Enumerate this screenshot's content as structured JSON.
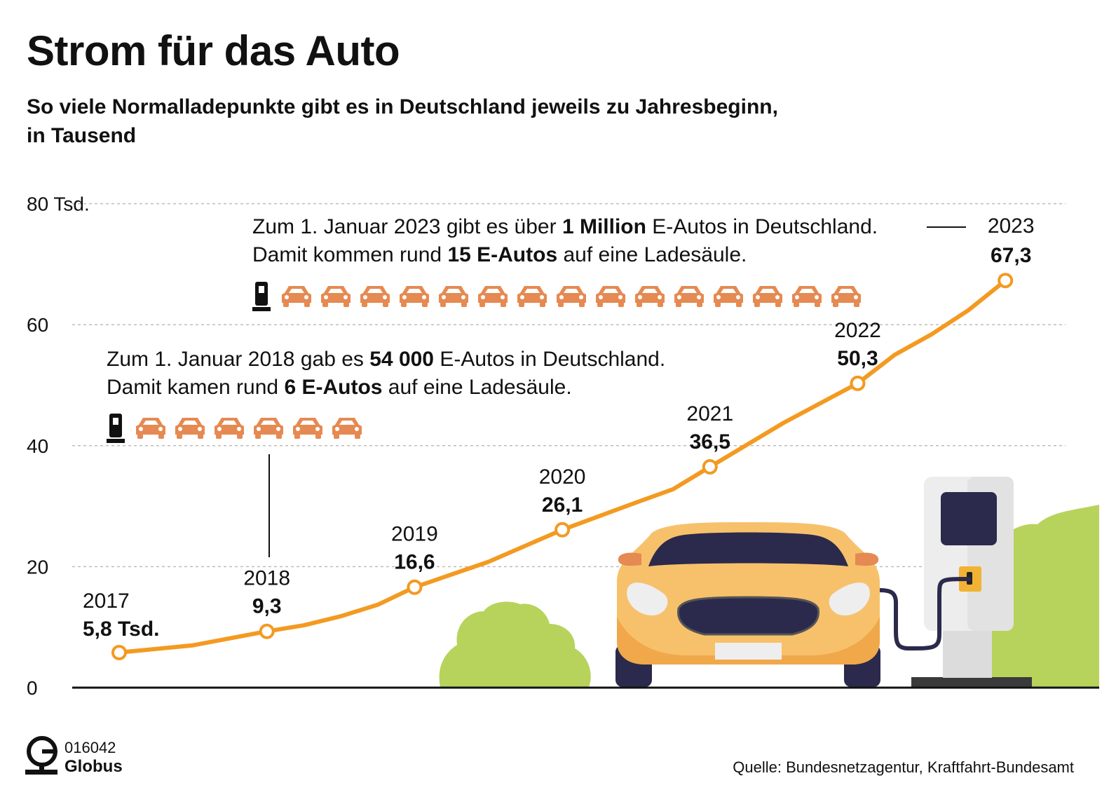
{
  "header": {
    "title": "Strom für das Auto",
    "subtitle_line1": "So viele Normalladepunkte gibt es in Deutschland jeweils zu Jahresbeginn,",
    "subtitle_line2": "in Tausend"
  },
  "colors": {
    "line": "#f39a21",
    "car_icon": "#e58a52",
    "charger_icon": "#111111",
    "grid": "#bdbdbd",
    "bush": "#b7d35c",
    "car_body": "#f7c16b",
    "car_dark": "#2b2a4c"
  },
  "chart_data": {
    "type": "line",
    "title": "Strom für das Auto",
    "subtitle": "So viele Normalladepunkte gibt es in Deutschland jeweils zu Jahresbeginn, in Tausend",
    "ylim": [
      0,
      80
    ],
    "y_ticks": [
      0,
      20,
      40,
      60,
      80
    ],
    "y_tick_labels": [
      "0",
      "20",
      "40",
      "60",
      "80 Tsd."
    ],
    "grid": true,
    "labeled_points": [
      {
        "year": "2017",
        "value": 5.8,
        "label": "5,8 Tsd."
      },
      {
        "year": "2018",
        "value": 9.3,
        "label": "9,3"
      },
      {
        "year": "2019",
        "value": 16.6,
        "label": "16,6"
      },
      {
        "year": "2020",
        "value": 26.1,
        "label": "26,1"
      },
      {
        "year": "2021",
        "value": 36.5,
        "label": "36,5"
      },
      {
        "year": "2022",
        "value": 50.3,
        "label": "50,3"
      },
      {
        "year": "2023",
        "value": 67.3,
        "label": "67,3"
      }
    ],
    "series_path": [
      {
        "x": 2017,
        "y": 5.8
      },
      {
        "x": 2017.5,
        "y": 7.0
      },
      {
        "x": 2018,
        "y": 9.3
      },
      {
        "x": 2018.25,
        "y": 10.3
      },
      {
        "x": 2018.5,
        "y": 11.8
      },
      {
        "x": 2018.75,
        "y": 13.7
      },
      {
        "x": 2019,
        "y": 16.6
      },
      {
        "x": 2019.5,
        "y": 20.8
      },
      {
        "x": 2020,
        "y": 26.1
      },
      {
        "x": 2020.5,
        "y": 30.6
      },
      {
        "x": 2020.75,
        "y": 32.8
      },
      {
        "x": 2021,
        "y": 36.5
      },
      {
        "x": 2021.5,
        "y": 43.8
      },
      {
        "x": 2022,
        "y": 50.3
      },
      {
        "x": 2022.25,
        "y": 55.0
      },
      {
        "x": 2022.5,
        "y": 58.4
      },
      {
        "x": 2022.75,
        "y": 62.4
      },
      {
        "x": 2023,
        "y": 67.3
      }
    ]
  },
  "annotations": {
    "a2023": {
      "line1_pre": "Zum 1. Januar 2023 gibt es über ",
      "line1_bold": "1 Million",
      "line1_post": " E-Autos in Deutschland.",
      "line2_pre": "Damit kommen rund ",
      "line2_bold": "15 E-Autos",
      "line2_post": " auf eine Ladesäule.",
      "cars": 15
    },
    "a2018": {
      "line1_pre": "Zum 1. Januar 2018 gab es ",
      "line1_bold": "54 000",
      "line1_post": " E-Autos in Deutschland.",
      "line2_pre": "Damit kamen rund ",
      "line2_bold": "6 E-Autos",
      "line2_post": " auf eine Ladesäule.",
      "cars": 6
    }
  },
  "footer": {
    "code": "016042",
    "brand": "Globus",
    "source": "Quelle: Bundesnetzagentur, Kraftfahrt-Bundesamt"
  }
}
